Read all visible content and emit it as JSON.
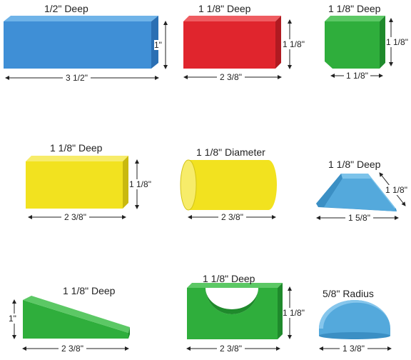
{
  "colors": {
    "blue": "#3f8fd6",
    "red": "#e0252d",
    "green": "#2fae3c",
    "yellow": "#f2e21f",
    "cyan": "#54a9dc"
  },
  "blocks": [
    {
      "shape": "rectangular-block",
      "color": "blue",
      "depth": "1/2\" Deep",
      "width": "3 1/2\"",
      "height": "1\""
    },
    {
      "shape": "rectangular-block",
      "color": "red",
      "depth": "1 1/8\" Deep",
      "width": "2 3/8\"",
      "height": "1 1/8\""
    },
    {
      "shape": "cube",
      "color": "green",
      "depth": "1 1/8\" Deep",
      "width": "1 1/8\"",
      "height": "1 1/8\""
    },
    {
      "shape": "rectangular-block",
      "color": "yellow",
      "depth": "1 1/8\" Deep",
      "width": "2 3/8\"",
      "height": "1 1/8\""
    },
    {
      "shape": "cylinder",
      "color": "yellow",
      "depth": "1 1/8\" Diameter",
      "width": "2 3/8\""
    },
    {
      "shape": "triangle",
      "color": "cyan",
      "depth": "1 1/8\" Deep",
      "width": "1 5/8\"",
      "side": "1 1/8\""
    },
    {
      "shape": "ramp",
      "color": "green",
      "depth": "1 1/8\" Deep",
      "width": "2 3/8\"",
      "height": "1\""
    },
    {
      "shape": "arch",
      "color": "green",
      "depth": "1 1/8\" Deep",
      "width": "2 3/8\"",
      "height": "1 1/8\""
    },
    {
      "shape": "half-cylinder",
      "color": "cyan",
      "depth": "5/8\" Radius",
      "width": "1 3/8\""
    }
  ]
}
